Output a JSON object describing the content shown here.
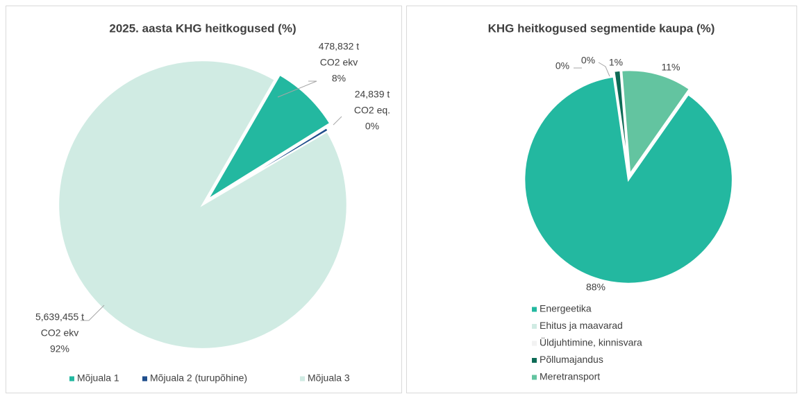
{
  "chart_data": [
    {
      "type": "pie",
      "title": "2025. aasta KHG heitkogused (%)",
      "categories": [
        "Mõjuala 1",
        "Mõjuala 2 (turupõhine)",
        "Mõjuala 3"
      ],
      "values": [
        478832,
        24839,
        5639455
      ],
      "value_labels": [
        [
          "478,832 t",
          "CO2 ekv",
          "8%"
        ],
        [
          "24,839 t",
          "CO2 eq.",
          "0%"
        ],
        [
          "5,639,455 t",
          "CO2 ekv",
          "92%"
        ]
      ],
      "colors": [
        "#23b8a0",
        "#1f4e8c",
        "#d0ebe3"
      ],
      "legend": "bottom"
    },
    {
      "type": "pie",
      "title": "KHG heitkogused segmentide kaupa (%)",
      "categories": [
        "Energeetika",
        "Ehitus ja maavarad",
        "Üldjuhtimine, kinnisvara",
        "Põllumajandus",
        "Meretransport"
      ],
      "values": [
        88,
        0,
        0,
        1,
        11
      ],
      "value_labels": [
        "88%",
        "0%",
        "0%",
        "1%",
        "11%"
      ],
      "colors": [
        "#23b8a0",
        "#d0ebe3",
        "#f2f2f2",
        "#0e6b56",
        "#63c4a0"
      ],
      "legend": "bottom"
    }
  ]
}
